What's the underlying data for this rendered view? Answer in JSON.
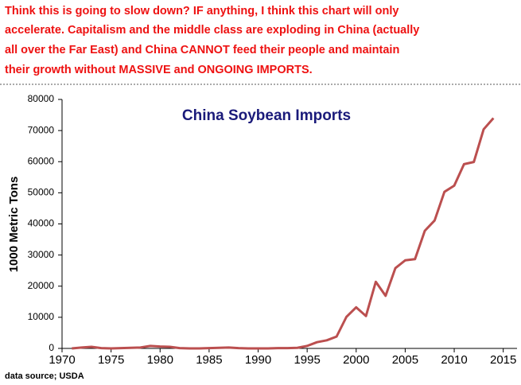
{
  "annotation": {
    "lines": [
      "Think this is going to slow down? IF anything, I think this chart will only",
      "accelerate. Capitalism and the middle class are exploding in China (actually",
      "all over the Far East) and China CANNOT feed their people and maintain",
      "their growth without MASSIVE and ONGOING IMPORTS."
    ]
  },
  "chart_data": {
    "type": "line",
    "title": "China Soybean Imports",
    "y_label": "1000 Metric Tons",
    "source": "data source; USDA",
    "x": [
      1971,
      1972,
      1973,
      1974,
      1975,
      1976,
      1977,
      1978,
      1979,
      1980,
      1981,
      1982,
      1983,
      1984,
      1985,
      1986,
      1987,
      1988,
      1989,
      1990,
      1991,
      1992,
      1993,
      1994,
      1995,
      1996,
      1997,
      1998,
      1999,
      2000,
      2001,
      2002,
      2003,
      2004,
      2005,
      2006,
      2007,
      2008,
      2009,
      2010,
      2011,
      2012,
      2013,
      2014
    ],
    "series": [
      {
        "name": "China Soybean Imports",
        "color": "#bb4f4f",
        "values": [
          0,
          300,
          500,
          100,
          0,
          100,
          200,
          300,
          800,
          600,
          500,
          100,
          0,
          0,
          100,
          200,
          300,
          100,
          0,
          0,
          0,
          100,
          100,
          200,
          800,
          2000,
          2600,
          3800,
          10100,
          13200,
          10400,
          21400,
          16900,
          25800,
          28300,
          28700,
          37800,
          41100,
          50300,
          52300,
          59200,
          59900,
          70400,
          74000
        ]
      }
    ],
    "xlim": [
      1970,
      2016
    ],
    "xticks": [
      1970,
      1975,
      1980,
      1985,
      1990,
      1995,
      2000,
      2005,
      2010,
      2015
    ],
    "ylim": [
      0,
      80000
    ],
    "yticks": [
      0,
      10000,
      20000,
      30000,
      40000,
      50000,
      60000,
      70000,
      80000
    ],
    "grid": false
  }
}
